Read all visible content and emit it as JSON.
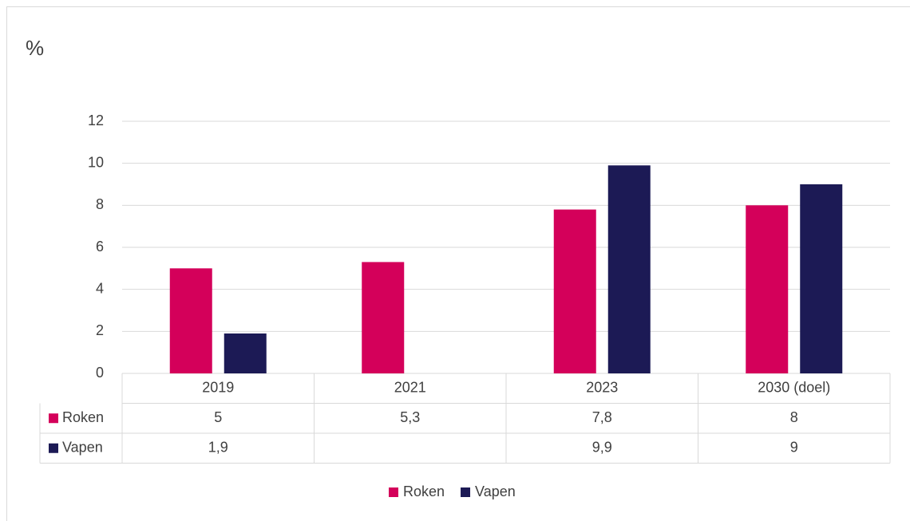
{
  "chart_data": {
    "type": "bar",
    "y_label": "%",
    "categories": [
      "2019",
      "2021",
      "2023",
      "2030 (doel)"
    ],
    "series": [
      {
        "name": "Roken",
        "color": "#d4005a",
        "values": [
          5,
          5.3,
          7.8,
          8
        ],
        "value_labels": [
          "5",
          "5,3",
          "7,8",
          "8"
        ]
      },
      {
        "name": "Vapen",
        "color": "#1c1a55",
        "values": [
          1.9,
          null,
          9.9,
          9
        ],
        "value_labels": [
          "1,9",
          null,
          "9,9",
          "9"
        ]
      }
    ],
    "ylim": [
      0,
      12
    ],
    "yticks": [
      0,
      2,
      4,
      6,
      8,
      10,
      12
    ],
    "grid": true,
    "legend": "bottom"
  }
}
